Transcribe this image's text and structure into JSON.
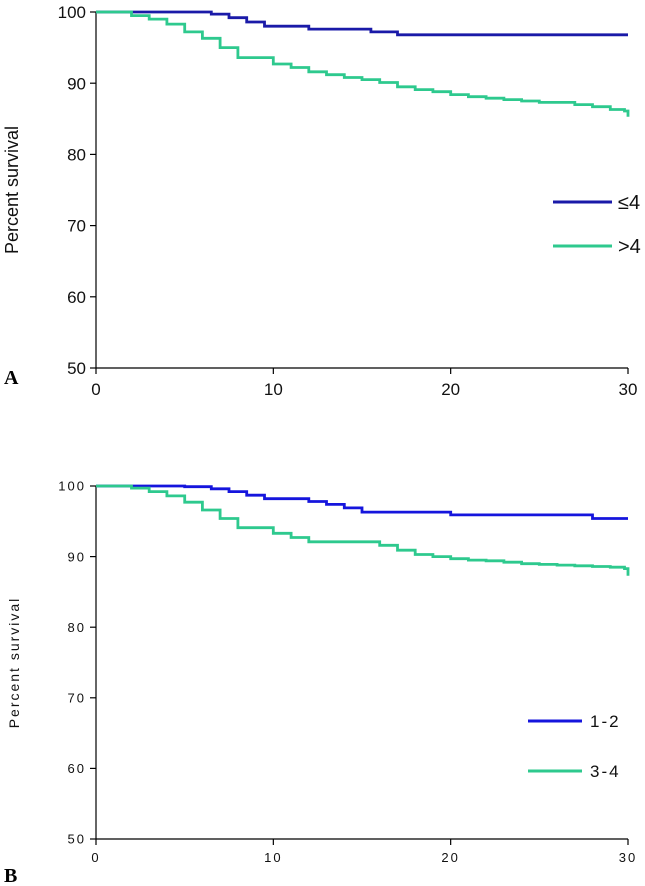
{
  "chart_data": [
    {
      "panel": "A",
      "type": "line",
      "title": "",
      "xlabel": "",
      "ylabel": "Percent survival",
      "xlim": [
        0,
        30
      ],
      "ylim": [
        50,
        100
      ],
      "xticks": [
        0,
        10,
        20,
        30
      ],
      "yticks": [
        50,
        60,
        70,
        80,
        90,
        100
      ],
      "legend_position": "right-middle",
      "series": [
        {
          "name": "≤4",
          "color": "#1a1aa8",
          "x": [
            0,
            5,
            6.5,
            7.5,
            8.5,
            9.5,
            12,
            15.5,
            17,
            30
          ],
          "y": [
            100,
            100,
            99.7,
            99.2,
            98.6,
            98.0,
            97.6,
            97.2,
            96.8,
            96.8
          ]
        },
        {
          "name": ">4",
          "color": "#2ec98e",
          "x": [
            0,
            2,
            3,
            4,
            5,
            6,
            7,
            8,
            10,
            11,
            12,
            13,
            14,
            15,
            16,
            17,
            18,
            19,
            20,
            21,
            22,
            23,
            24,
            25,
            27,
            28,
            29,
            29.8,
            30
          ],
          "y": [
            100,
            99.5,
            99.0,
            98.3,
            97.2,
            96.3,
            95.0,
            93.6,
            92.7,
            92.2,
            91.6,
            91.2,
            90.8,
            90.5,
            90.1,
            89.5,
            89.1,
            88.8,
            88.4,
            88.1,
            87.9,
            87.7,
            87.5,
            87.3,
            87.0,
            86.7,
            86.3,
            86.1,
            85.3
          ]
        }
      ]
    },
    {
      "panel": "B",
      "type": "line",
      "title": "",
      "xlabel": "",
      "ylabel": "Percent survival",
      "xlim": [
        0,
        30
      ],
      "ylim": [
        50,
        100
      ],
      "xticks": [
        0,
        10,
        20,
        30
      ],
      "yticks": [
        50,
        60,
        70,
        80,
        90,
        100
      ],
      "legend_position": "right-lower",
      "series": [
        {
          "name": "1-2",
          "color": "#1515dd",
          "x": [
            0,
            5,
            6.5,
            7.5,
            8.5,
            9.5,
            12,
            13,
            14,
            15,
            20,
            28,
            30
          ],
          "y": [
            100,
            99.9,
            99.6,
            99.2,
            98.7,
            98.2,
            97.8,
            97.4,
            96.9,
            96.3,
            95.9,
            95.4,
            95.4
          ]
        },
        {
          "name": "3-4",
          "color": "#2ec98e",
          "x": [
            0,
            2,
            3,
            4,
            5,
            6,
            7,
            8,
            10,
            11,
            12,
            16,
            17,
            18,
            19,
            20,
            21,
            22,
            23,
            24,
            25,
            26,
            27,
            28,
            29,
            29.8,
            30
          ],
          "y": [
            100,
            99.7,
            99.2,
            98.6,
            97.7,
            96.6,
            95.4,
            94.1,
            93.3,
            92.7,
            92.1,
            91.6,
            90.9,
            90.3,
            90.0,
            89.7,
            89.5,
            89.4,
            89.2,
            89.0,
            88.9,
            88.8,
            88.7,
            88.6,
            88.5,
            88.3,
            87.3
          ]
        }
      ]
    }
  ]
}
